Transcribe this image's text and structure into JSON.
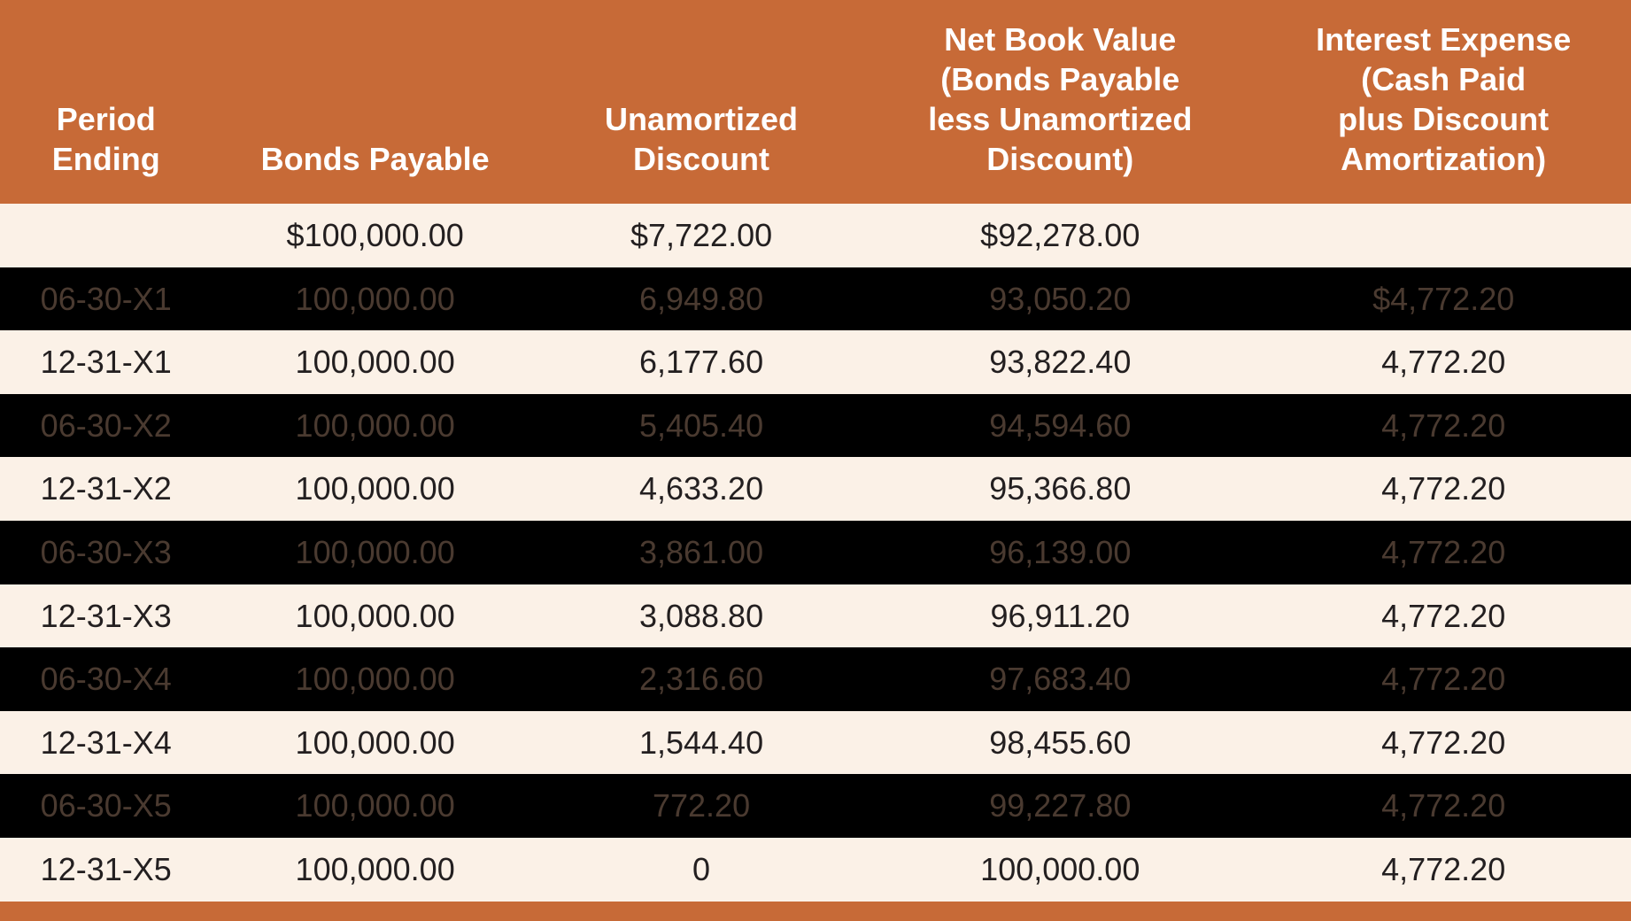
{
  "table": {
    "type": "table",
    "colors": {
      "header_bg": "#c76a37",
      "header_text": "#ffffff",
      "row_light_bg": "#fbf1e7",
      "row_dark_bg": "#000000",
      "text_light": "#231f20",
      "text_dark": "#4a3a30",
      "footer_bg": "#c76a37"
    },
    "typography": {
      "header_fontsize_pt": 27,
      "body_fontsize_pt": 27,
      "header_fontweight": 600,
      "body_fontweight": 400
    },
    "column_widths_pct": [
      13,
      20,
      20,
      24,
      23
    ],
    "columns": [
      {
        "l1": "Period",
        "l2": "Ending"
      },
      {
        "l1": "",
        "l2": "Bonds Payable"
      },
      {
        "l1": "Unamortized",
        "l2": "Discount"
      },
      {
        "l1": "Net Book Value",
        "l2": "(Bonds Payable",
        "l3": "less Unamortized",
        "l4": "Discount)"
      },
      {
        "l1": "Interest Expense",
        "l2": "(Cash Paid",
        "l3": "plus Discount",
        "l4": "Amortization)"
      }
    ],
    "rows": [
      {
        "shade": "light",
        "c1": "",
        "c2": "$100,000.00",
        "c3": "$7,722.00",
        "c4": "$92,278.00",
        "c5": ""
      },
      {
        "shade": "dark",
        "c1": "06-30-X1",
        "c2": "100,000.00",
        "c3": "6,949.80",
        "c4": "93,050.20",
        "c5": "$4,772.20"
      },
      {
        "shade": "light",
        "c1": "12-31-X1",
        "c2": "100,000.00",
        "c3": "6,177.60",
        "c4": "93,822.40",
        "c5": "4,772.20"
      },
      {
        "shade": "dark",
        "c1": "06-30-X2",
        "c2": "100,000.00",
        "c3": "5,405.40",
        "c4": "94,594.60",
        "c5": "4,772.20"
      },
      {
        "shade": "light",
        "c1": "12-31-X2",
        "c2": "100,000.00",
        "c3": "4,633.20",
        "c4": "95,366.80",
        "c5": "4,772.20"
      },
      {
        "shade": "dark",
        "c1": "06-30-X3",
        "c2": "100,000.00",
        "c3": "3,861.00",
        "c4": "96,139.00",
        "c5": "4,772.20"
      },
      {
        "shade": "light",
        "c1": "12-31-X3",
        "c2": "100,000.00",
        "c3": "3,088.80",
        "c4": "96,911.20",
        "c5": "4,772.20"
      },
      {
        "shade": "dark",
        "c1": "06-30-X4",
        "c2": "100,000.00",
        "c3": "2,316.60",
        "c4": "97,683.40",
        "c5": "4,772.20"
      },
      {
        "shade": "light",
        "c1": "12-31-X4",
        "c2": "100,000.00",
        "c3": "1,544.40",
        "c4": "98,455.60",
        "c5": "4,772.20"
      },
      {
        "shade": "dark",
        "c1": "06-30-X5",
        "c2": "100,000.00",
        "c3": "772.20",
        "c4": "99,227.80",
        "c5": "4,772.20"
      },
      {
        "shade": "light",
        "c1": "12-31-X5",
        "c2": "100,000.00",
        "c3": "0",
        "c4": "100,000.00",
        "c5": "4,772.20"
      }
    ]
  }
}
